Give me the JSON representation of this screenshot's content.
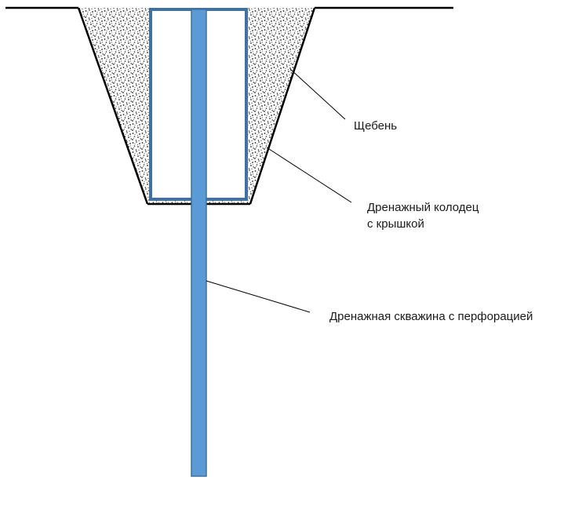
{
  "labels": {
    "gravel": "Щебень",
    "well_line1": "Дренажный колодец",
    "well_line2": "с крышкой",
    "borehole": "Дренажная скважина с перфорацией"
  },
  "colors": {
    "pipe_fill": "#5b9bd5",
    "pipe_stroke": "#41719c",
    "box_stroke": "#41719c",
    "ground": "#000000",
    "leader": "#000000",
    "gravel_dots": "#222222"
  },
  "icons": {
    "gravel_texture": "stipple-dots"
  }
}
